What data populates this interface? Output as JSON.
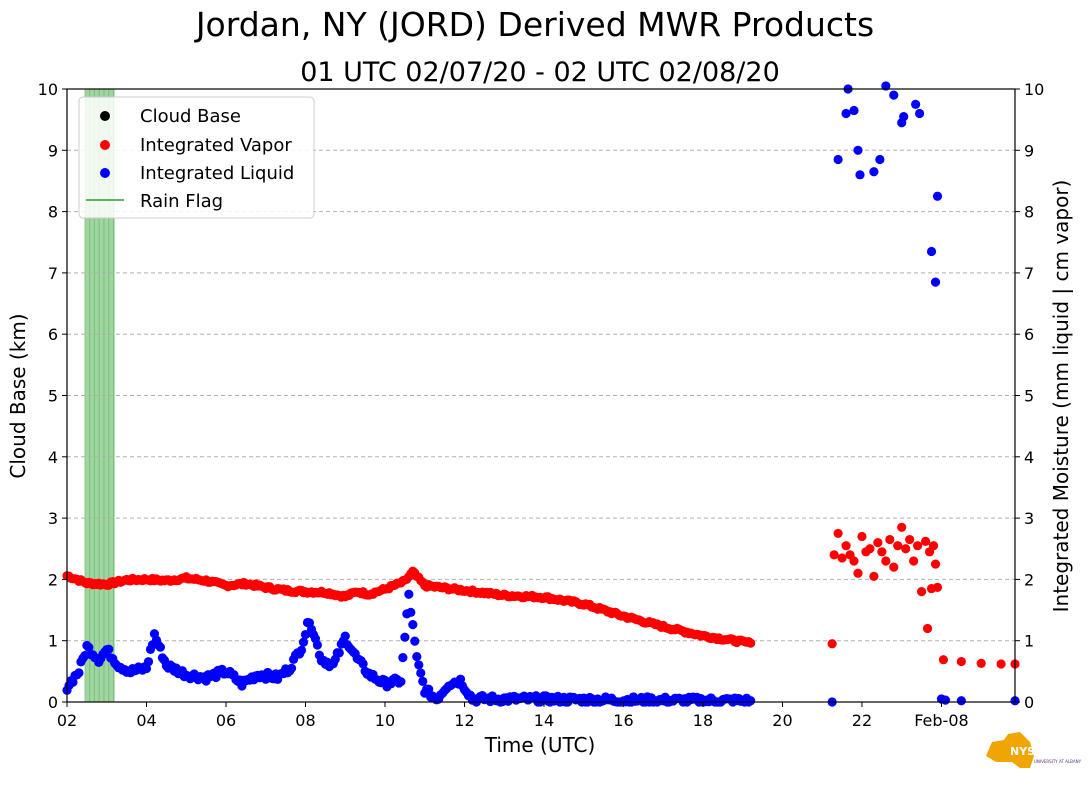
{
  "chart_data": {
    "type": "scatter",
    "title": "Jordan, NY (JORD) Derived MWR Products",
    "subtitle": "01 UTC 02/07/20 - 02 UTC 02/08/20",
    "xlabel": "Time (UTC)",
    "ylabel_left": "Cloud Base (km)",
    "ylabel_right": "Integrated Moisture (mm liquid | cm vapor)",
    "xlim_hours": [
      2,
      25.85
    ],
    "ylim": [
      0,
      10
    ],
    "x_ticks": [
      {
        "h": 2,
        "label": "02"
      },
      {
        "h": 4,
        "label": "04"
      },
      {
        "h": 6,
        "label": "06"
      },
      {
        "h": 8,
        "label": "08"
      },
      {
        "h": 10,
        "label": "10"
      },
      {
        "h": 12,
        "label": "12"
      },
      {
        "h": 14,
        "label": "14"
      },
      {
        "h": 16,
        "label": "16"
      },
      {
        "h": 18,
        "label": "18"
      },
      {
        "h": 20,
        "label": "20"
      },
      {
        "h": 22,
        "label": "22"
      },
      {
        "h": 24,
        "label": "Feb-08"
      }
    ],
    "y_ticks": [
      0,
      1,
      2,
      3,
      4,
      5,
      6,
      7,
      8,
      9,
      10
    ],
    "grid": "horizontal dashed",
    "legend": [
      "Cloud Base",
      "Integrated Vapor",
      "Integrated Liquid",
      "Rain Flag"
    ],
    "legend_position": "top-left",
    "colors": {
      "cloud_base": "#000000",
      "vapor": "#ff0000",
      "liquid": "#0000ff",
      "rain": "#2ca02c"
    },
    "rain_flag_hours": [
      [
        2.45,
        3.2
      ]
    ],
    "vapor_trend": [
      [
        2.0,
        2.06
      ],
      [
        2.5,
        1.94
      ],
      [
        3.0,
        1.92
      ],
      [
        3.5,
        1.99
      ],
      [
        4.0,
        2.0
      ],
      [
        4.5,
        1.98
      ],
      [
        5.0,
        2.02
      ],
      [
        5.5,
        1.98
      ],
      [
        6.0,
        1.9
      ],
      [
        6.5,
        1.93
      ],
      [
        7.0,
        1.87
      ],
      [
        7.5,
        1.82
      ],
      [
        8.0,
        1.8
      ],
      [
        8.5,
        1.79
      ],
      [
        9.0,
        1.72
      ],
      [
        9.3,
        1.8
      ],
      [
        9.6,
        1.76
      ],
      [
        10.0,
        1.84
      ],
      [
        10.5,
        1.97
      ],
      [
        10.7,
        2.12
      ],
      [
        11.0,
        1.9
      ],
      [
        11.5,
        1.86
      ],
      [
        12.0,
        1.82
      ],
      [
        13.0,
        1.74
      ],
      [
        14.0,
        1.71
      ],
      [
        15.0,
        1.6
      ],
      [
        16.0,
        1.4
      ],
      [
        17.0,
        1.23
      ],
      [
        18.0,
        1.08
      ],
      [
        19.0,
        0.98
      ],
      [
        19.2,
        0.96
      ]
    ],
    "vapor_extra": [
      [
        21.25,
        0.95
      ],
      [
        21.3,
        2.4
      ],
      [
        21.4,
        2.75
      ],
      [
        21.5,
        2.35
      ],
      [
        21.6,
        2.55
      ],
      [
        21.7,
        2.4
      ],
      [
        21.8,
        2.3
      ],
      [
        21.9,
        2.1
      ],
      [
        22.0,
        2.7
      ],
      [
        22.1,
        2.45
      ],
      [
        22.2,
        2.5
      ],
      [
        22.3,
        2.05
      ],
      [
        22.4,
        2.6
      ],
      [
        22.5,
        2.45
      ],
      [
        22.6,
        2.3
      ],
      [
        22.7,
        2.65
      ],
      [
        22.8,
        2.2
      ],
      [
        22.9,
        2.55
      ],
      [
        23.0,
        2.85
      ],
      [
        23.1,
        2.5
      ],
      [
        23.2,
        2.65
      ],
      [
        23.3,
        2.3
      ],
      [
        23.4,
        2.55
      ],
      [
        23.5,
        1.8
      ],
      [
        23.6,
        2.62
      ],
      [
        23.65,
        1.2
      ],
      [
        23.7,
        2.45
      ],
      [
        23.75,
        1.85
      ],
      [
        23.8,
        2.55
      ],
      [
        23.85,
        2.25
      ],
      [
        23.9,
        1.87
      ],
      [
        24.05,
        0.69
      ],
      [
        24.5,
        0.66
      ],
      [
        25.0,
        0.63
      ],
      [
        25.5,
        0.62
      ],
      [
        25.85,
        0.62
      ]
    ],
    "liquid_trend": [
      [
        2.0,
        0.25
      ],
      [
        2.3,
        0.5
      ],
      [
        2.5,
        0.9
      ],
      [
        2.8,
        0.7
      ],
      [
        3.0,
        0.85
      ],
      [
        3.3,
        0.6
      ],
      [
        3.6,
        0.5
      ],
      [
        4.0,
        0.55
      ],
      [
        4.2,
        1.1
      ],
      [
        4.5,
        0.6
      ],
      [
        5.0,
        0.45
      ],
      [
        5.5,
        0.4
      ],
      [
        6.0,
        0.5
      ],
      [
        6.4,
        0.3
      ],
      [
        6.8,
        0.45
      ],
      [
        7.3,
        0.4
      ],
      [
        7.6,
        0.55
      ],
      [
        7.9,
        0.9
      ],
      [
        8.1,
        1.35
      ],
      [
        8.4,
        0.7
      ],
      [
        8.7,
        0.6
      ],
      [
        9.0,
        1.05
      ],
      [
        9.3,
        0.7
      ],
      [
        9.6,
        0.45
      ],
      [
        10.0,
        0.3
      ],
      [
        10.4,
        0.35
      ],
      [
        10.6,
        1.75
      ],
      [
        10.8,
        0.7
      ],
      [
        11.0,
        0.2
      ],
      [
        11.3,
        0.05
      ],
      [
        11.6,
        0.3
      ],
      [
        11.9,
        0.35
      ],
      [
        12.2,
        0.05
      ],
      [
        13.0,
        0.05
      ],
      [
        16.0,
        0.03
      ],
      [
        19.2,
        0.02
      ]
    ],
    "liquid_extra": [
      [
        21.25,
        0.0
      ],
      [
        21.4,
        8.85
      ],
      [
        21.6,
        9.6
      ],
      [
        21.65,
        10.0
      ],
      [
        21.8,
        9.65
      ],
      [
        21.9,
        9.0
      ],
      [
        21.95,
        8.6
      ],
      [
        22.3,
        8.65
      ],
      [
        22.45,
        8.85
      ],
      [
        22.6,
        10.05
      ],
      [
        22.8,
        9.9
      ],
      [
        23.0,
        9.45
      ],
      [
        23.05,
        9.55
      ],
      [
        23.35,
        9.75
      ],
      [
        23.45,
        9.6
      ],
      [
        23.75,
        7.35
      ],
      [
        23.85,
        6.85
      ],
      [
        23.9,
        8.25
      ],
      [
        24.0,
        0.05
      ],
      [
        24.1,
        0.03
      ],
      [
        24.5,
        0.02
      ],
      [
        25.85,
        0.02
      ]
    ]
  },
  "logo": {
    "text": "NYS Mesonet",
    "subtext": "UNIVERSITY AT ALBANY",
    "color": "#f0a500",
    "text_color": "#5a2d82"
  }
}
